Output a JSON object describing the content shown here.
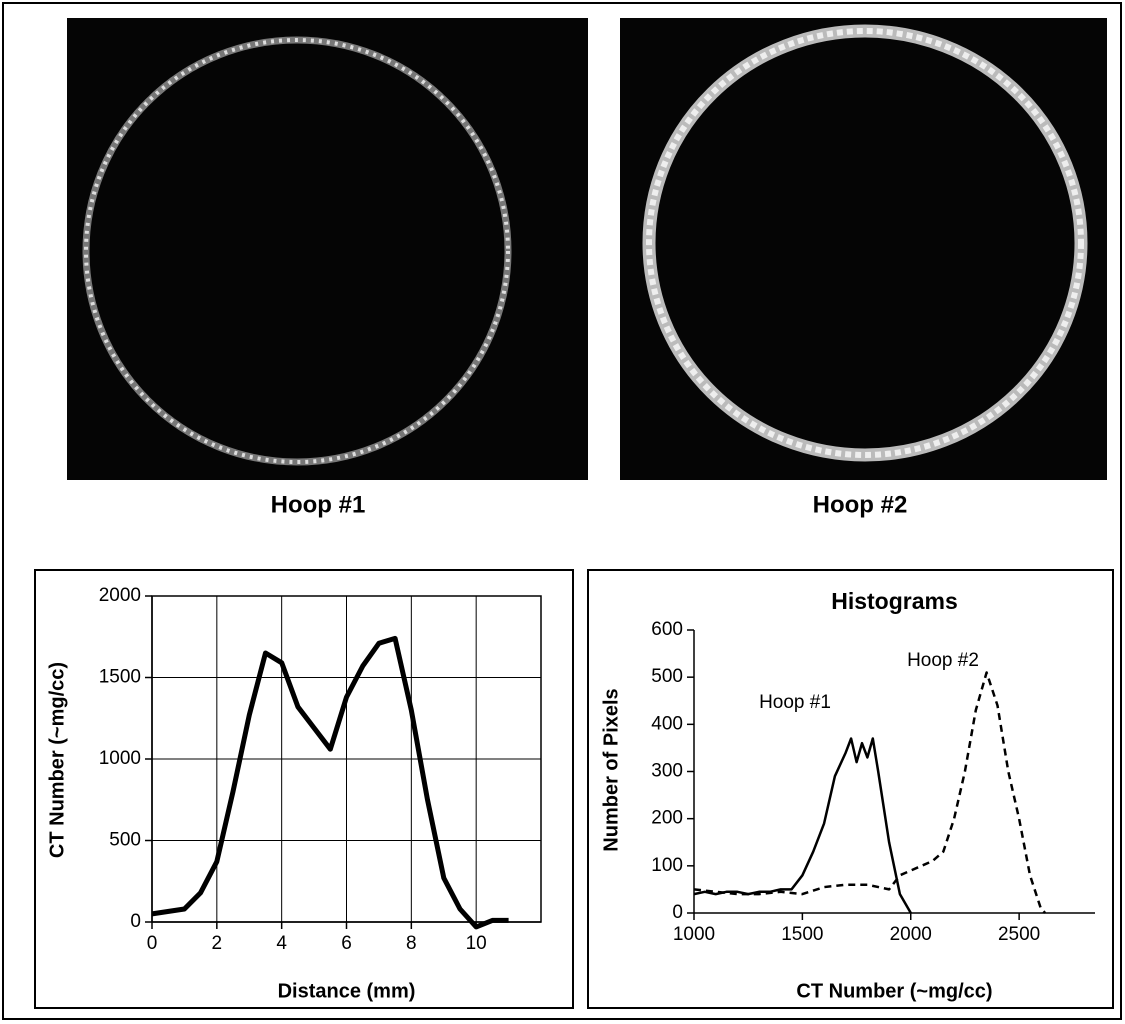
{
  "images": [
    {
      "caption": "Hoop #1"
    },
    {
      "caption": "Hoop #2"
    }
  ],
  "chart_data": [
    {
      "type": "line",
      "xlabel": "Distance (mm)",
      "ylabel": "CT Number (~mg/cc)",
      "x": [
        0,
        1,
        1.5,
        2,
        2.5,
        3,
        3.5,
        4,
        4.5,
        5,
        5.5,
        6,
        6.5,
        7,
        7.5,
        8,
        8.5,
        9,
        9.5,
        10,
        10.5,
        11
      ],
      "series": [
        {
          "color": "#000000",
          "line_style": "solid",
          "values": [
            50,
            80,
            180,
            370,
            800,
            1270,
            1650,
            1590,
            1320,
            1190,
            1060,
            1380,
            1570,
            1710,
            1740,
            1300,
            750,
            270,
            80,
            -30,
            10,
            10
          ]
        }
      ],
      "xlim": [
        0,
        12
      ],
      "xticks": [
        0,
        2,
        4,
        6,
        8,
        10
      ],
      "ylim": [
        0,
        2000
      ],
      "yticks": [
        0,
        500,
        1000,
        1500,
        2000
      ],
      "grid": true
    },
    {
      "type": "line",
      "title": "Histograms",
      "xlabel": "CT Number (~mg/cc)",
      "ylabel": "Number of Pixels",
      "series": [
        {
          "name": "Hoop #1",
          "color": "#000000",
          "line_style": "solid",
          "x": [
            1000,
            1050,
            1100,
            1150,
            1200,
            1250,
            1300,
            1350,
            1400,
            1450,
            1500,
            1550,
            1600,
            1650,
            1700,
            1725,
            1750,
            1775,
            1800,
            1825,
            1850,
            1900,
            1950,
            2000
          ],
          "values": [
            40,
            45,
            40,
            45,
            45,
            40,
            45,
            45,
            50,
            50,
            80,
            130,
            190,
            290,
            340,
            370,
            320,
            360,
            330,
            370,
            300,
            150,
            40,
            0
          ]
        },
        {
          "name": "Hoop #2",
          "color": "#000000",
          "line_style": "dashed",
          "x": [
            1000,
            1100,
            1200,
            1300,
            1400,
            1500,
            1600,
            1700,
            1800,
            1900,
            1950,
            2000,
            2100,
            2150,
            2200,
            2250,
            2300,
            2350,
            2400,
            2450,
            2500,
            2550,
            2600,
            2620
          ],
          "values": [
            50,
            45,
            40,
            40,
            45,
            40,
            55,
            60,
            60,
            50,
            80,
            90,
            110,
            130,
            200,
            300,
            430,
            510,
            440,
            300,
            200,
            80,
            10,
            0
          ]
        }
      ],
      "xlim": [
        1000,
        2850
      ],
      "xticks": [
        1000,
        1500,
        2000,
        2500
      ],
      "ylim": [
        0,
        600
      ],
      "yticks": [
        0,
        100,
        200,
        300,
        400,
        500,
        600
      ],
      "grid": false
    }
  ]
}
